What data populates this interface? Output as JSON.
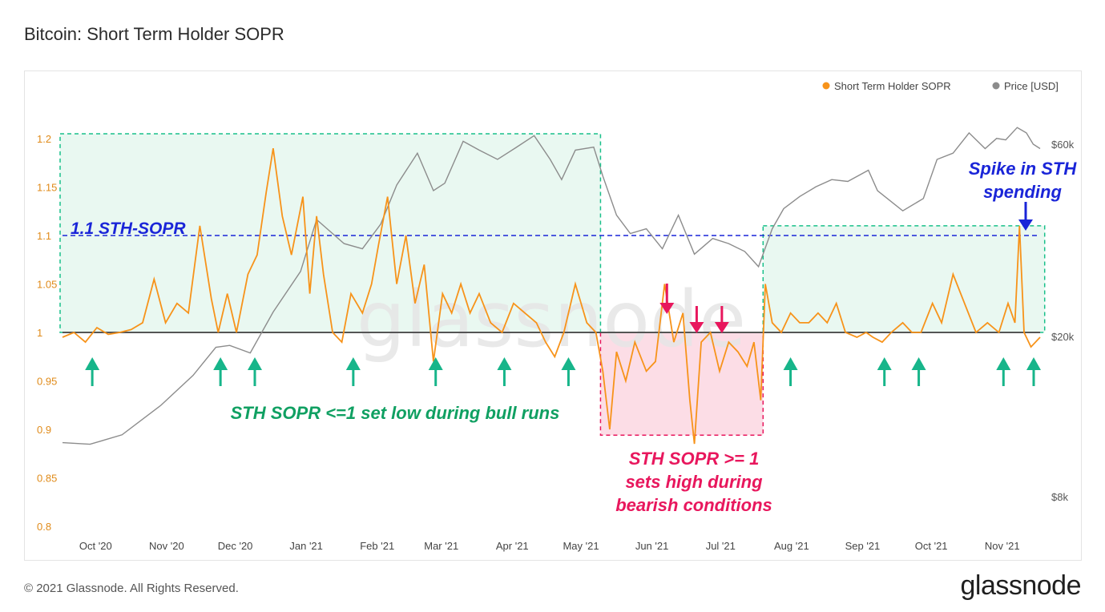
{
  "title": "Bitcoin: Short Term Holder SOPR",
  "footer": {
    "copyright": "© 2021 Glassnode. All Rights Reserved.",
    "logo": "glassnode"
  },
  "watermark": "glassnode",
  "colors": {
    "sopr": "#f7931a",
    "price": "#8c8c8c",
    "green_zone": "#e9f8f1",
    "green_border": "#19c08a",
    "red_zone": "#fcdde6",
    "red_border": "#e8175d",
    "blue_line": "#1a25d8",
    "green_arrow": "#17b58a",
    "green_text": "#10a062",
    "pink_text": "#e8175d"
  },
  "chart_data": {
    "type": "line",
    "x_range": [
      "2020-09-19",
      "2021-11-20"
    ],
    "x_ticks": [
      "Oct '20",
      "Nov '20",
      "Dec '20",
      "Jan '21",
      "Feb '21",
      "Mar '21",
      "Apr '21",
      "May '21",
      "Jun '21",
      "Jul '21",
      "Aug '21",
      "Sep '21",
      "Oct '21",
      "Nov '21"
    ],
    "y_left": {
      "label": "",
      "ticks": [
        "1.2",
        "1.15",
        "1.1",
        "1.05",
        "1",
        "0.95",
        "0.9",
        "0.85",
        "0.8"
      ],
      "ylim": [
        0.8,
        1.21
      ]
    },
    "y_right": {
      "label": "",
      "scale": "log",
      "ticks": [
        "$60k",
        "$20k",
        "$8k"
      ]
    },
    "legend": [
      "Short Term Holder SOPR",
      "Price [USD]"
    ],
    "legend_position": "top-right",
    "series": [
      {
        "name": "Short Term Holder SOPR",
        "axis": "left",
        "x": [
          "2020-09-19",
          "2020-09-24",
          "2020-09-29",
          "2020-10-04",
          "2020-10-09",
          "2020-10-14",
          "2020-10-19",
          "2020-10-24",
          "2020-10-29",
          "2020-11-03",
          "2020-11-08",
          "2020-11-13",
          "2020-11-18",
          "2020-11-23",
          "2020-11-26",
          "2020-11-30",
          "2020-12-04",
          "2020-12-09",
          "2020-12-13",
          "2020-12-17",
          "2020-12-20",
          "2020-12-24",
          "2020-12-28",
          "2021-01-02",
          "2021-01-05",
          "2021-01-08",
          "2021-01-11",
          "2021-01-15",
          "2021-01-19",
          "2021-01-23",
          "2021-01-28",
          "2021-02-01",
          "2021-02-04",
          "2021-02-08",
          "2021-02-12",
          "2021-02-16",
          "2021-02-20",
          "2021-02-24",
          "2021-02-28",
          "2021-03-04",
          "2021-03-08",
          "2021-03-12",
          "2021-03-16",
          "2021-03-20",
          "2021-03-25",
          "2021-03-30",
          "2021-04-04",
          "2021-04-09",
          "2021-04-14",
          "2021-04-18",
          "2021-04-22",
          "2021-04-26",
          "2021-05-01",
          "2021-05-06",
          "2021-05-10",
          "2021-05-13",
          "2021-05-16",
          "2021-05-19",
          "2021-05-23",
          "2021-05-27",
          "2021-06-01",
          "2021-06-05",
          "2021-06-09",
          "2021-06-13",
          "2021-06-17",
          "2021-06-20",
          "2021-06-22",
          "2021-06-25",
          "2021-06-29",
          "2021-07-03",
          "2021-07-07",
          "2021-07-11",
          "2021-07-15",
          "2021-07-18",
          "2021-07-21",
          "2021-07-23",
          "2021-07-26",
          "2021-07-30",
          "2021-08-03",
          "2021-08-07",
          "2021-08-11",
          "2021-08-15",
          "2021-08-19",
          "2021-08-23",
          "2021-08-27",
          "2021-09-01",
          "2021-09-05",
          "2021-09-08",
          "2021-09-12",
          "2021-09-16",
          "2021-09-21",
          "2021-09-25",
          "2021-09-29",
          "2021-10-04",
          "2021-10-08",
          "2021-10-13",
          "2021-10-18",
          "2021-10-23",
          "2021-10-28",
          "2021-11-02",
          "2021-11-06",
          "2021-11-09",
          "2021-11-11",
          "2021-11-13",
          "2021-11-16",
          "2021-11-20"
        ],
        "y": [
          0.995,
          1.0,
          0.99,
          1.005,
          0.998,
          1.0,
          1.003,
          1.01,
          1.055,
          1.01,
          1.03,
          1.02,
          1.11,
          1.035,
          1.0,
          1.04,
          1.0,
          1.06,
          1.08,
          1.145,
          1.19,
          1.12,
          1.08,
          1.14,
          1.04,
          1.12,
          1.06,
          1.0,
          0.99,
          1.04,
          1.02,
          1.05,
          1.09,
          1.14,
          1.05,
          1.1,
          1.03,
          1.07,
          0.97,
          1.04,
          1.02,
          1.05,
          1.02,
          1.04,
          1.01,
          1.0,
          1.03,
          1.02,
          1.01,
          0.99,
          0.975,
          1.0,
          1.05,
          1.01,
          1.0,
          0.96,
          0.9,
          0.98,
          0.95,
          0.99,
          0.96,
          0.97,
          1.05,
          0.99,
          1.02,
          0.93,
          0.885,
          0.99,
          1.0,
          0.96,
          0.99,
          0.98,
          0.965,
          0.99,
          0.93,
          1.05,
          1.01,
          1.0,
          1.02,
          1.01,
          1.01,
          1.02,
          1.01,
          1.03,
          1.0,
          0.995,
          1.0,
          0.995,
          0.99,
          1.0,
          1.01,
          1.0,
          1.0,
          1.03,
          1.01,
          1.06,
          1.03,
          1.0,
          1.01,
          1.0,
          1.03,
          1.01,
          1.11,
          1.0,
          0.985,
          0.995
        ]
      },
      {
        "name": "Price [USD]",
        "axis": "right",
        "x": [
          "2020-09-19",
          "2020-10-01",
          "2020-10-15",
          "2020-11-01",
          "2020-11-15",
          "2020-11-25",
          "2020-12-01",
          "2020-12-10",
          "2020-12-20",
          "2021-01-01",
          "2021-01-08",
          "2021-01-15",
          "2021-01-20",
          "2021-01-28",
          "2021-02-05",
          "2021-02-12",
          "2021-02-21",
          "2021-02-28",
          "2021-03-05",
          "2021-03-13",
          "2021-03-20",
          "2021-03-28",
          "2021-04-05",
          "2021-04-13",
          "2021-04-20",
          "2021-04-25",
          "2021-05-01",
          "2021-05-09",
          "2021-05-13",
          "2021-05-19",
          "2021-05-25",
          "2021-06-01",
          "2021-06-08",
          "2021-06-15",
          "2021-06-22",
          "2021-06-30",
          "2021-07-07",
          "2021-07-14",
          "2021-07-20",
          "2021-07-26",
          "2021-07-31",
          "2021-08-07",
          "2021-08-14",
          "2021-08-21",
          "2021-08-28",
          "2021-09-06",
          "2021-09-10",
          "2021-09-21",
          "2021-09-30",
          "2021-10-06",
          "2021-10-13",
          "2021-10-20",
          "2021-10-27",
          "2021-11-01",
          "2021-11-05",
          "2021-11-10",
          "2021-11-14",
          "2021-11-17",
          "2021-11-20"
        ],
        "y": [
          10900,
          10800,
          11400,
          13500,
          16000,
          18800,
          19000,
          18200,
          23000,
          29000,
          39000,
          36000,
          34000,
          33000,
          38000,
          47500,
          57000,
          46000,
          48000,
          61000,
          58000,
          55000,
          58800,
          63000,
          55000,
          49000,
          58000,
          59000,
          50000,
          40000,
          36000,
          37000,
          33000,
          40000,
          32000,
          35000,
          34000,
          32500,
          29800,
          37000,
          41500,
          44500,
          47000,
          49000,
          48500,
          51700,
          46000,
          41000,
          44000,
          55000,
          57000,
          64000,
          58500,
          62000,
          61500,
          66000,
          64000,
          60000,
          58500
        ]
      }
    ]
  },
  "annotations": {
    "sth_threshold": "1.1 STH-SOPR",
    "bull_text": "STH SOPR <=1 set low during bull runs",
    "bear_text_lines": [
      "STH SOPR >= 1",
      "sets high during",
      "bearish conditions"
    ],
    "spike_text_lines": [
      "Spike in STH",
      "spending"
    ]
  }
}
